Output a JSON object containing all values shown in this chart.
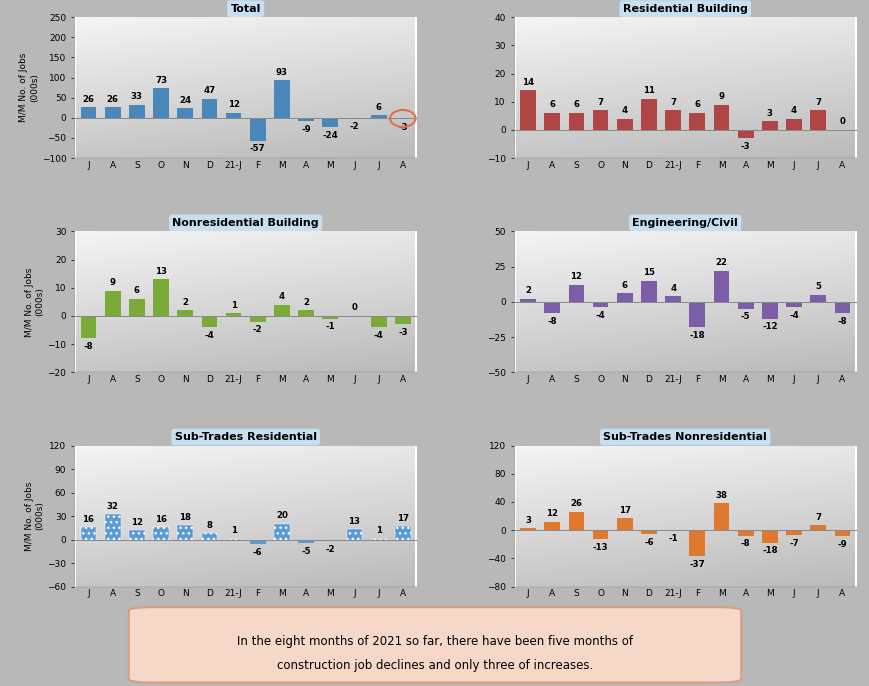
{
  "months": [
    "J",
    "A",
    "S",
    "O",
    "N",
    "D",
    "21-J",
    "F",
    "M",
    "A",
    "M",
    "J",
    "J",
    "A"
  ],
  "panels": [
    {
      "title": "Total",
      "values": [
        26,
        26,
        33,
        73,
        24,
        47,
        12,
        -57,
        93,
        -9,
        -24,
        -2,
        6,
        -3
      ],
      "ylim": [
        -100,
        250
      ],
      "yticks": [
        -100,
        -50,
        0,
        50,
        100,
        150,
        200,
        250
      ],
      "color": "#4a87bb",
      "circled_last": true,
      "hatch_pos": false
    },
    {
      "title": "Residential Building",
      "values": [
        14,
        6,
        6,
        7,
        4,
        11,
        7,
        6,
        9,
        -3,
        3,
        4,
        7,
        0
      ],
      "ylim": [
        -10,
        40
      ],
      "yticks": [
        -10,
        0,
        10,
        20,
        30,
        40
      ],
      "color": "#b04545",
      "circled_last": false,
      "hatch_pos": false
    },
    {
      "title": "Nonresidential Building",
      "values": [
        -8,
        9,
        6,
        13,
        2,
        -4,
        1,
        -2,
        4,
        2,
        -1,
        0,
        -4,
        -3
      ],
      "ylim": [
        -20,
        30
      ],
      "yticks": [
        -20,
        -10,
        0,
        10,
        20,
        30
      ],
      "color": "#7aaa38",
      "circled_last": false,
      "hatch_pos": false
    },
    {
      "title": "Engineering/Civil",
      "values": [
        2,
        -8,
        12,
        -4,
        6,
        15,
        4,
        -18,
        22,
        -5,
        -12,
        -4,
        5,
        -8
      ],
      "ylim": [
        -50,
        50
      ],
      "yticks": [
        -50,
        -25,
        0,
        25,
        50
      ],
      "color": "#7b5ea7",
      "circled_last": false,
      "hatch_pos": false
    },
    {
      "title": "Sub-Trades Residential",
      "values": [
        16,
        32,
        12,
        16,
        18,
        8,
        1,
        -6,
        20,
        -5,
        -2,
        13,
        1,
        17
      ],
      "ylim": [
        -60,
        120
      ],
      "yticks": [
        -60,
        -30,
        0,
        30,
        60,
        90,
        120
      ],
      "color": "#5b9bd5",
      "circled_last": false,
      "hatch_pos": true
    },
    {
      "title": "Sub-Trades Nonresidential",
      "values": [
        3,
        12,
        26,
        -13,
        17,
        -6,
        -1,
        -37,
        38,
        -8,
        -18,
        -7,
        7,
        -9
      ],
      "ylim": [
        -80,
        120
      ],
      "yticks": [
        -80,
        -40,
        0,
        40,
        80,
        120
      ],
      "color": "#e07830",
      "circled_last": false,
      "hatch_pos": false
    }
  ],
  "ylabel": "M/M No. of Jobs\n(000s)",
  "fig_bg": "#b8b8b8",
  "plot_bg_top": "#f2f2f2",
  "plot_bg_bottom": "#c8c8c8",
  "title_bg": "#c8dff0",
  "title_fc": "black",
  "footer_text": "In the eight months of 2021 so far, there have been five months of\nconstruction job declines and only three of increases.",
  "footer_bg": "#f5d8c8",
  "footer_edge": "#d4a080",
  "circle_color": "#e07050",
  "bar_width": 0.65
}
